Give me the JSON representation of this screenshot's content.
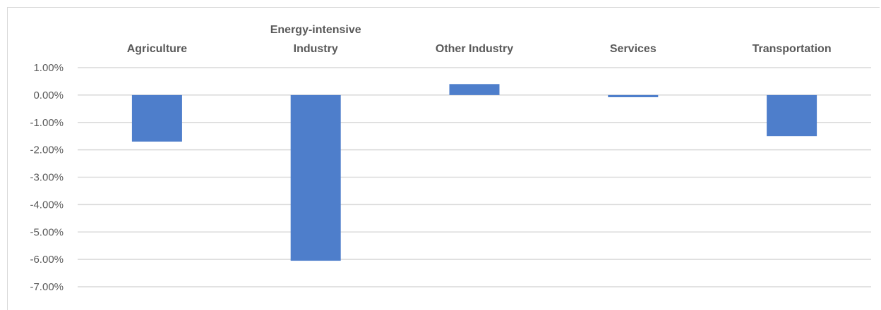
{
  "chart_data": {
    "type": "bar",
    "categories": [
      [
        "Agriculture"
      ],
      [
        "Energy-intensive",
        "Industry"
      ],
      [
        "Other Industry"
      ],
      [
        "Services"
      ],
      [
        "Transportation"
      ]
    ],
    "values": [
      -1.7,
      -6.05,
      0.4,
      -0.08,
      -1.5
    ],
    "value_unit": "%",
    "ylim": [
      -7,
      1
    ],
    "ytick_step": 1,
    "ytick_labels": [
      "1.00%",
      "0.00%",
      "-1.00%",
      "-2.00%",
      "-3.00%",
      "-4.00%",
      "-5.00%",
      "-6.00%",
      "-7.00%"
    ],
    "grid": true,
    "legend": "none",
    "colors": {
      "bar": "#4e7ecb",
      "grid": "#d9d9d9",
      "text": "#595959"
    }
  }
}
